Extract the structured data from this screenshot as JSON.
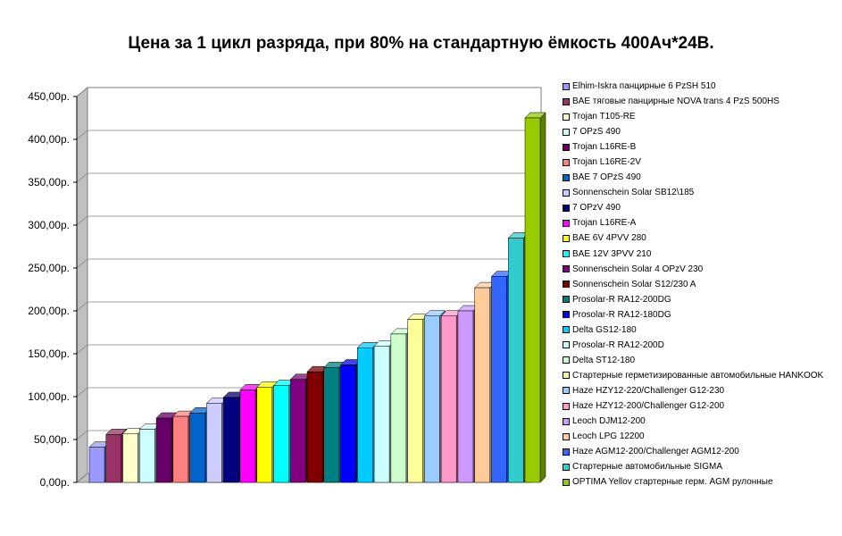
{
  "chart_data": {
    "type": "bar",
    "title": "Цена за 1 цикл разряда, при 80% на стандартную ёмкость 400Ач*24В.",
    "xlabel": "",
    "ylabel": "",
    "ylim": [
      0,
      450
    ],
    "yticks": [
      "0,00р.",
      "50,00р.",
      "100,00р.",
      "150,00р.",
      "200,00р.",
      "250,00р.",
      "300,00р.",
      "350,00р.",
      "400,00р.",
      "450,00р."
    ],
    "grid": true,
    "legend_position": "right",
    "chart_style": "3d-bar",
    "series": [
      {
        "name": "Elhim-Iskra панцирные 6 PzSH 510",
        "value": 41,
        "color": "#9999ff"
      },
      {
        "name": "BAE тяговые панцирные NOVA trans 4 PzS 500HS",
        "value": 56,
        "color": "#993366"
      },
      {
        "name": "Trojan T105-RE",
        "value": 57,
        "color": "#ffffcc"
      },
      {
        "name": "7 OPzS 490",
        "value": 62,
        "color": "#ccffff"
      },
      {
        "name": "Trojan L16RE-B",
        "value": 75,
        "color": "#660066"
      },
      {
        "name": "Trojan L16RE-2V",
        "value": 77,
        "color": "#ff8080"
      },
      {
        "name": "BAE 7 OPzS 490",
        "value": 81,
        "color": "#0066cc"
      },
      {
        "name": "Sonnenschein Solar SB12\\185",
        "value": 92,
        "color": "#ccccff"
      },
      {
        "name": "7 OPzV 490",
        "value": 99,
        "color": "#000080"
      },
      {
        "name": "Trojan L16RE-A",
        "value": 108,
        "color": "#ff00ff"
      },
      {
        "name": "BAE 6V 4PVV 280",
        "value": 111,
        "color": "#ffff00"
      },
      {
        "name": "BAE 12V 3PVV 210",
        "value": 113,
        "color": "#00ffff"
      },
      {
        "name": "Sonnenschein Solar 4 OPzV 230",
        "value": 120,
        "color": "#800080"
      },
      {
        "name": "Sonnenschein Solar S12/230 A",
        "value": 129,
        "color": "#800000"
      },
      {
        "name": "Prosolar-R RA12-200DG",
        "value": 134,
        "color": "#008080"
      },
      {
        "name": "Prosolar-R RA12-180DG",
        "value": 137,
        "color": "#0000ff"
      },
      {
        "name": "Delta GS12-180",
        "value": 157,
        "color": "#00ccff"
      },
      {
        "name": "Prosolar-R RA12-200D",
        "value": 159,
        "color": "#ccffff"
      },
      {
        "name": "Delta ST12-180",
        "value": 173,
        "color": "#ccffcc"
      },
      {
        "name": "Стартерные герметизированные автомобильные HANKOOK",
        "value": 190,
        "color": "#ffff99"
      },
      {
        "name": "Haze HZY12-220/Challenger G12-230",
        "value": 194,
        "color": "#99ccff"
      },
      {
        "name": "Haze HZY12-200/Challenger G12-200",
        "value": 194,
        "color": "#ff99cc"
      },
      {
        "name": "Leoch DJM12-200",
        "value": 200,
        "color": "#cc99ff"
      },
      {
        "name": "Leoch LPG 12200",
        "value": 227,
        "color": "#ffcc99"
      },
      {
        "name": "Haze AGM12-200/Challenger AGM12-200",
        "value": 240,
        "color": "#3366ff"
      },
      {
        "name": "Стартерные автомобильные SIGMA",
        "value": 285,
        "color": "#33cccc"
      },
      {
        "name": "OPTIMA Yellov стартерные герм. AGM рулонные",
        "value": 425,
        "color": "#99cc00"
      }
    ]
  }
}
